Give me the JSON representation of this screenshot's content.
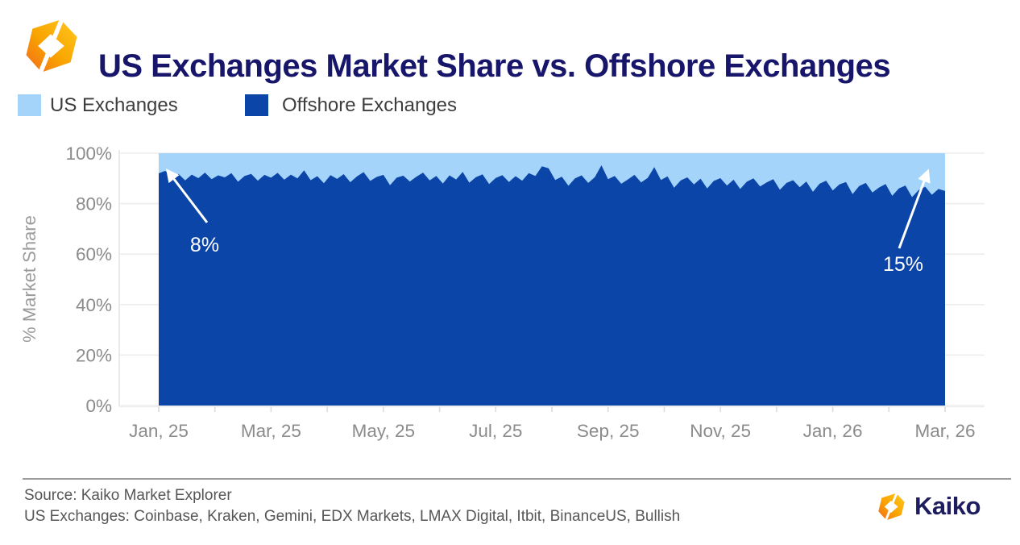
{
  "header": {
    "title": "US Exchanges Market Share vs. Offshore Exchanges"
  },
  "legend": {
    "items": [
      {
        "label": "US Exchanges",
        "color": "#a4d4fa"
      },
      {
        "label": "Offshore Exchanges",
        "color": "#0b45a7"
      }
    ]
  },
  "chart_data": {
    "type": "area",
    "stacked": true,
    "total_pct": 100,
    "title": "US Exchanges Market Share vs. Offshore Exchanges",
    "ylabel": "% Market Share",
    "ylim": [
      0,
      100
    ],
    "y_tick_labels": [
      "0%",
      "20%",
      "40%",
      "60%",
      "80%",
      "100%"
    ],
    "x_tick_labels": [
      "Jan, 25",
      "Mar, 25",
      "May, 25",
      "Jul, 25",
      "Sep, 25",
      "Nov, 25",
      "Jan, 26",
      "Mar, 26"
    ],
    "months_span": 14,
    "grid": "horizontal",
    "legend_position": "top-left",
    "series": [
      {
        "name": "US Exchanges",
        "color": "#a4d4fa",
        "values_pct": [
          8.0,
          7.0,
          9.6,
          8.2,
          10.8,
          8.5,
          9.9,
          7.7,
          10.3,
          8.8,
          9.6,
          7.9,
          11.3,
          9.0,
          8.2,
          10.9,
          8.6,
          9.7,
          7.8,
          10.5,
          8.5,
          10.0,
          6.8,
          10.7,
          9.1,
          11.9,
          8.7,
          10.2,
          8.3,
          11.5,
          9.2,
          7.5,
          11.0,
          9.4,
          8.6,
          12.7,
          9.7,
          8.9,
          11.2,
          9.3,
          7.7,
          10.8,
          9.0,
          12.0,
          8.8,
          10.4,
          7.4,
          11.7,
          9.5,
          8.4,
          12.2,
          9.8,
          8.7,
          11.4,
          9.1,
          10.9,
          7.9,
          9.0,
          5.2,
          6.0,
          10.6,
          9.3,
          12.9,
          10.0,
          8.8,
          11.8,
          9.5,
          4.8,
          10.3,
          9.0,
          12.1,
          10.4,
          8.6,
          11.6,
          9.8,
          5.5,
          10.6,
          9.2,
          13.7,
          10.8,
          9.6,
          12.4,
          10.1,
          14.0,
          11.0,
          9.9,
          12.8,
          10.5,
          14.2,
          11.3,
          10.0,
          13.2,
          11.6,
          10.3,
          14.5,
          11.8,
          10.7,
          13.5,
          11.2,
          15.3,
          12.1,
          10.9,
          14.8,
          12.4,
          11.4,
          16.2,
          13.0,
          11.8,
          15.6,
          13.6,
          12.2,
          16.9,
          14.0,
          12.8,
          17.4,
          14.6,
          13.3,
          16.5,
          14.2,
          15.0
        ]
      },
      {
        "name": "Offshore Exchanges",
        "color": "#0b45a7",
        "derived": "100 - US Exchanges share"
      }
    ],
    "annotations": [
      {
        "text": "8%",
        "target": "first data point (Jan, 25)"
      },
      {
        "text": "15%",
        "target": "last data point (Mar, 26)"
      }
    ]
  },
  "footer": {
    "source": "Source: Kaiko Market Explorer",
    "note": "US Exchanges: Coinbase, Kraken, Gemini, EDX Markets, LMAX Digital, Itbit, BinanceUS, Bullish",
    "brand": "Kaiko"
  },
  "colors": {
    "title_navy": "#17166a",
    "brand_navy": "#1d1d60",
    "us_light_blue": "#a4d4fa",
    "offshore_dark_blue": "#0b45a7",
    "axis_text_gray": "#8b8b8b",
    "legend_text_gray": "#3d3d3d",
    "footer_text_gray": "#565656",
    "gridline_gray": "#ededed",
    "annotation_white": "#ffffff",
    "logo_gradient": [
      "#f2691d",
      "#f9a300",
      "#ffc81e"
    ]
  }
}
